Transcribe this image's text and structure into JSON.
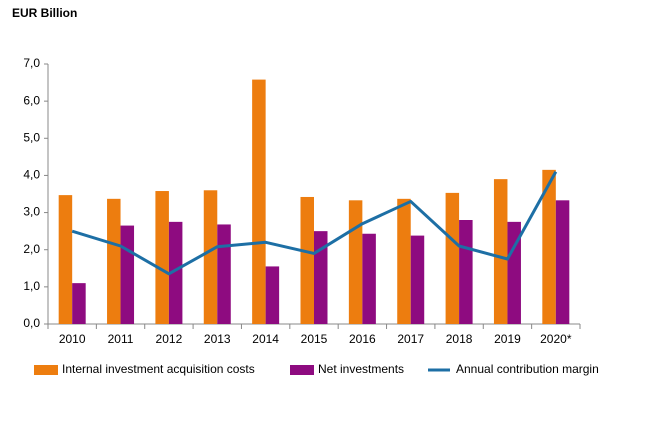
{
  "chart_data": {
    "type": "bar-line",
    "title": "EUR Billion",
    "categories": [
      "2010",
      "2011",
      "2012",
      "2013",
      "2014",
      "2015",
      "2016",
      "2017",
      "2018",
      "2019",
      "2020*"
    ],
    "series": [
      {
        "name": "Internal investment acquisition costs",
        "type": "bar",
        "color": "#ed7d0f",
        "values": [
          3.47,
          3.37,
          3.58,
          3.6,
          6.58,
          3.42,
          3.33,
          3.37,
          3.53,
          3.9,
          4.15
        ]
      },
      {
        "name": "Net investments",
        "type": "bar",
        "color": "#8e0b80",
        "values": [
          1.1,
          2.65,
          2.75,
          2.68,
          1.55,
          2.5,
          2.43,
          2.38,
          2.8,
          2.75,
          3.33
        ]
      },
      {
        "name": "Annual contribution margin",
        "type": "line",
        "color": "#1d6fa5",
        "values": [
          2.5,
          2.1,
          1.35,
          2.08,
          2.2,
          1.9,
          2.7,
          3.3,
          2.1,
          1.75,
          4.1
        ]
      }
    ],
    "ylim": [
      0,
      7
    ],
    "yticks": [
      {
        "value": 0,
        "label": "0,0"
      },
      {
        "value": 1,
        "label": "1,0"
      },
      {
        "value": 2,
        "label": "2,0"
      },
      {
        "value": 3,
        "label": "3,0"
      },
      {
        "value": 4,
        "label": "4,0"
      },
      {
        "value": 5,
        "label": "5,0"
      },
      {
        "value": 6,
        "label": "6,0"
      },
      {
        "value": 7,
        "label": "7,0"
      }
    ],
    "legend": "bottom"
  }
}
